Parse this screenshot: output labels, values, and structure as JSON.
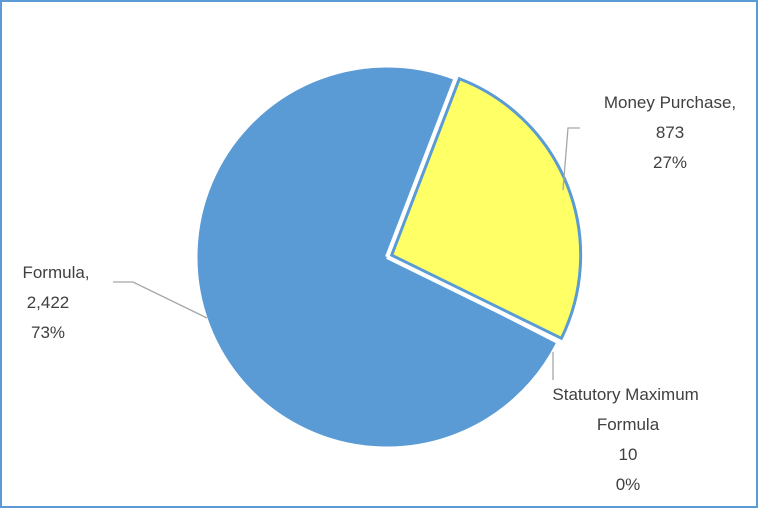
{
  "chart_data": {
    "type": "pie",
    "title": "",
    "slices": [
      {
        "name": "Money Purchase",
        "value": 873,
        "percent": "27%",
        "value_label": "873",
        "name_label": "Money Purchase,",
        "color": "#ffff66",
        "stroke": "#5b9bd5",
        "start_angle": 21
      },
      {
        "name": "Statutory Maximum Formula",
        "value": 10,
        "percent": "0%",
        "value_label": "10",
        "name_label": "Statutory Maximum Formula",
        "color": "#ffffff",
        "stroke": "#ffffff"
      },
      {
        "name": "Formula",
        "value": 2422,
        "percent": "73%",
        "value_label": "2,422",
        "name_label": "Formula,",
        "color": "#5b9bd5",
        "stroke": "#5b9bd5"
      }
    ],
    "colors": {
      "frame_border": "#5b9bd5",
      "leader_line": "#a6a6a6",
      "label_text": "#404040"
    },
    "legend": "none",
    "data_labels": "outside-with-leader-lines"
  }
}
